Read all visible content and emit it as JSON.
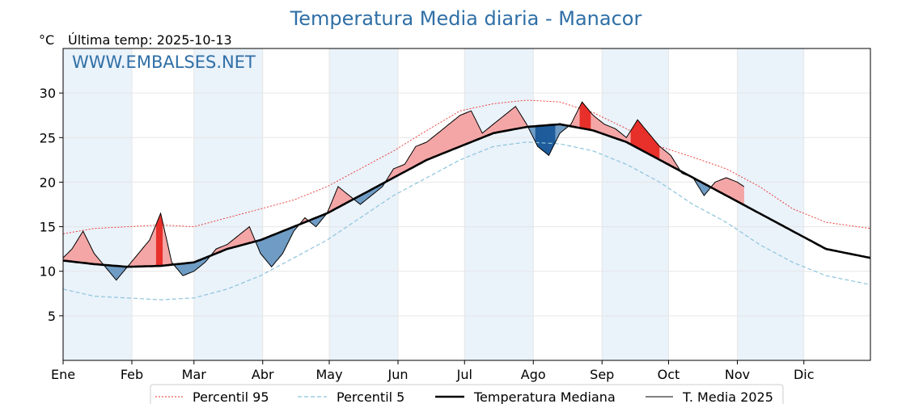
{
  "chart_data": {
    "type": "line",
    "title": "Temperatura Media diaria - Manacor",
    "unit_label": "°C",
    "last_update": "Última temp: 2025-10-13",
    "watermark": "WWW.EMBALSES.NET",
    "months": [
      "Ene",
      "Feb",
      "Mar",
      "Abr",
      "May",
      "Jun",
      "Jul",
      "Ago",
      "Sep",
      "Oct",
      "Nov",
      "Dic"
    ],
    "ylim": [
      0,
      35
    ],
    "yticks": [
      5,
      10,
      15,
      20,
      25,
      30
    ],
    "grid": true,
    "legend_position": "bottom",
    "colors": {
      "p95": "#e8302a",
      "p5": "#8cc4dc",
      "median": "#000000",
      "current": "#000000",
      "above": "#f4a6a6",
      "above_strong": "#e8302a",
      "below": "#6f9cc4",
      "below_strong": "#1f5c9c",
      "band": "#eaf2fa"
    },
    "series": [
      {
        "name": "Percentil 95",
        "key": "p95",
        "style": "dotted",
        "points": [
          [
            1,
            14.2
          ],
          [
            15,
            14.8
          ],
          [
            30,
            15.0
          ],
          [
            45,
            15.2
          ],
          [
            60,
            15.0
          ],
          [
            75,
            16.0
          ],
          [
            90,
            17.0
          ],
          [
            105,
            18.0
          ],
          [
            120,
            19.5
          ],
          [
            135,
            21.5
          ],
          [
            150,
            23.5
          ],
          [
            165,
            25.8
          ],
          [
            180,
            28.0
          ],
          [
            195,
            28.8
          ],
          [
            210,
            29.2
          ],
          [
            225,
            29.0
          ],
          [
            240,
            27.8
          ],
          [
            255,
            26.0
          ],
          [
            270,
            24.0
          ],
          [
            285,
            22.8
          ],
          [
            300,
            21.5
          ],
          [
            315,
            19.5
          ],
          [
            330,
            17.0
          ],
          [
            345,
            15.5
          ],
          [
            365,
            14.8
          ]
        ]
      },
      {
        "name": "Percentil 5",
        "key": "p5",
        "style": "dashed",
        "points": [
          [
            1,
            8.0
          ],
          [
            15,
            7.2
          ],
          [
            30,
            7.0
          ],
          [
            45,
            6.8
          ],
          [
            60,
            7.0
          ],
          [
            75,
            8.0
          ],
          [
            90,
            9.5
          ],
          [
            105,
            11.5
          ],
          [
            120,
            13.5
          ],
          [
            135,
            16.0
          ],
          [
            150,
            18.5
          ],
          [
            165,
            20.5
          ],
          [
            180,
            22.5
          ],
          [
            195,
            24.0
          ],
          [
            210,
            24.5
          ],
          [
            225,
            24.3
          ],
          [
            240,
            23.5
          ],
          [
            255,
            22.0
          ],
          [
            270,
            20.0
          ],
          [
            285,
            17.5
          ],
          [
            300,
            15.5
          ],
          [
            315,
            13.0
          ],
          [
            330,
            11.0
          ],
          [
            345,
            9.5
          ],
          [
            365,
            8.5
          ]
        ]
      },
      {
        "name": "Temperatura Mediana",
        "key": "median",
        "style": "solid-bold",
        "points": [
          [
            1,
            11.2
          ],
          [
            15,
            10.8
          ],
          [
            30,
            10.5
          ],
          [
            45,
            10.6
          ],
          [
            60,
            11.0
          ],
          [
            75,
            12.5
          ],
          [
            90,
            13.5
          ],
          [
            105,
            15.0
          ],
          [
            120,
            16.5
          ],
          [
            135,
            18.5
          ],
          [
            150,
            20.5
          ],
          [
            165,
            22.5
          ],
          [
            180,
            24.0
          ],
          [
            195,
            25.5
          ],
          [
            210,
            26.2
          ],
          [
            225,
            26.5
          ],
          [
            240,
            25.8
          ],
          [
            255,
            24.5
          ],
          [
            270,
            22.5
          ],
          [
            285,
            20.5
          ],
          [
            300,
            18.5
          ],
          [
            315,
            16.5
          ],
          [
            330,
            14.5
          ],
          [
            345,
            12.5
          ],
          [
            365,
            11.5
          ]
        ]
      },
      {
        "name": "T. Media 2025",
        "key": "current",
        "style": "solid",
        "points": [
          [
            1,
            11.5
          ],
          [
            5,
            12.5
          ],
          [
            10,
            14.5
          ],
          [
            15,
            12.0
          ],
          [
            20,
            10.5
          ],
          [
            25,
            9.0
          ],
          [
            30,
            10.5
          ],
          [
            35,
            12.0
          ],
          [
            40,
            13.5
          ],
          [
            45,
            16.5
          ],
          [
            50,
            11.0
          ],
          [
            55,
            9.5
          ],
          [
            60,
            10.0
          ],
          [
            65,
            11.0
          ],
          [
            70,
            12.5
          ],
          [
            75,
            13.0
          ],
          [
            80,
            14.0
          ],
          [
            85,
            15.0
          ],
          [
            90,
            12.0
          ],
          [
            95,
            10.5
          ],
          [
            100,
            12.0
          ],
          [
            105,
            14.5
          ],
          [
            110,
            16.0
          ],
          [
            115,
            15.0
          ],
          [
            120,
            16.5
          ],
          [
            125,
            19.5
          ],
          [
            130,
            18.5
          ],
          [
            135,
            17.5
          ],
          [
            140,
            18.5
          ],
          [
            145,
            19.5
          ],
          [
            150,
            21.5
          ],
          [
            155,
            22.0
          ],
          [
            160,
            24.0
          ],
          [
            165,
            24.5
          ],
          [
            170,
            25.5
          ],
          [
            175,
            26.5
          ],
          [
            180,
            27.5
          ],
          [
            185,
            28.0
          ],
          [
            190,
            25.5
          ],
          [
            195,
            26.5
          ],
          [
            200,
            27.5
          ],
          [
            205,
            28.5
          ],
          [
            210,
            26.5
          ],
          [
            215,
            24.0
          ],
          [
            220,
            23.0
          ],
          [
            225,
            25.5
          ],
          [
            230,
            26.5
          ],
          [
            235,
            29.0
          ],
          [
            240,
            27.5
          ],
          [
            245,
            26.5
          ],
          [
            250,
            26.0
          ],
          [
            255,
            25.0
          ],
          [
            260,
            27.0
          ],
          [
            265,
            25.5
          ],
          [
            270,
            24.0
          ],
          [
            275,
            23.0
          ],
          [
            280,
            21.0
          ],
          [
            285,
            20.5
          ],
          [
            290,
            18.5
          ],
          [
            295,
            20.0
          ],
          [
            300,
            20.5
          ],
          [
            305,
            20.0
          ],
          [
            308,
            19.5
          ]
        ]
      }
    ]
  }
}
